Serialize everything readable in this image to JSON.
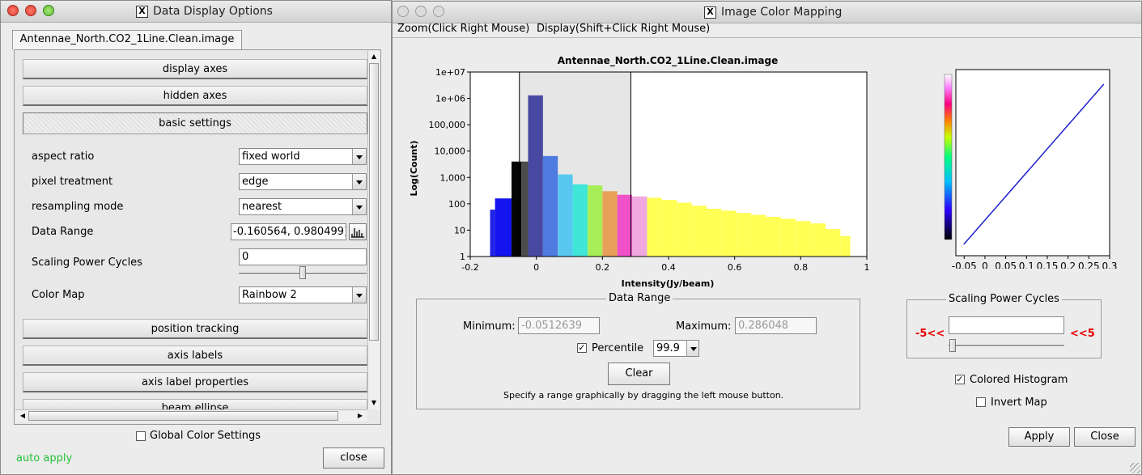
{
  "left_window": {
    "title": "Data Display Options",
    "tab": "Antennae_North.CO2_1Line.Clean.image",
    "sections": {
      "display_axes": "display axes",
      "hidden_axes": "hidden axes",
      "basic_settings": "basic settings",
      "position_tracking": "position tracking",
      "axis_labels": "axis labels",
      "axis_label_properties": "axis label properties",
      "beam_ellipse": "beam ellipse"
    },
    "settings": {
      "aspect_ratio_label": "aspect ratio",
      "aspect_ratio_value": "fixed world",
      "pixel_treatment_label": "pixel treatment",
      "pixel_treatment_value": "edge",
      "resampling_mode_label": "resampling mode",
      "resampling_mode_value": "nearest",
      "data_range_label": "Data Range",
      "data_range_value": "-0.160564, 0.980499]",
      "scaling_power_cycles_label": "Scaling Power Cycles",
      "scaling_power_cycles_value": "0",
      "color_map_label": "Color Map",
      "color_map_value": "Rainbow 2"
    },
    "global_color_settings": "Global Color Settings",
    "auto_apply": "auto apply",
    "close": "close"
  },
  "right_window": {
    "title": "Image Color Mapping",
    "menu": {
      "zoom": "Zoom(Click Right Mouse)",
      "display": "Display(Shift+Click Right Mouse)"
    },
    "data_range": {
      "legend": "Data Range",
      "minimum_label": "Minimum:",
      "minimum_value": "-0.0512639",
      "maximum_label": "Maximum:",
      "maximum_value": "0.286048",
      "percentile_label": "Percentile",
      "percentile_value": "99.9",
      "clear": "Clear",
      "hint": "Specify a range graphically by dragging the left mouse button."
    },
    "scaling": {
      "legend": "Scaling Power Cycles",
      "left_label": "-5<<",
      "right_label": "<<5",
      "value": ""
    },
    "colored_histogram": "Colored Histogram",
    "invert_map": "Invert Map",
    "apply": "Apply",
    "close": "Close",
    "colors": {
      "accent_red": "#e80000",
      "auto_apply_green": "#22c33a"
    }
  },
  "chart_data": [
    {
      "type": "bar",
      "title": "Antennae_North.CO2_1Line.Clean.image",
      "xlabel": "Intensity(Jy/beam)",
      "ylabel": "Log(Count)",
      "yscale": "log",
      "xlim": [
        -0.2,
        1
      ],
      "ylim": [
        1,
        10000000
      ],
      "xticks": [
        "-0.2",
        "0",
        "0.2",
        "0.4",
        "0.6",
        "0.8",
        "1"
      ],
      "yticks": [
        "1",
        "10",
        "100",
        "1,000",
        "10,000",
        "100,000",
        "1e+06",
        "1e+07"
      ],
      "selection": [
        -0.0512639,
        0.286048
      ],
      "bins": [
        {
          "x0": -0.14,
          "x1": -0.125,
          "count": 60,
          "color": "#2222e8"
        },
        {
          "x0": -0.125,
          "x1": -0.075,
          "count": 160,
          "color": "#1414f0"
        },
        {
          "x0": -0.075,
          "x1": -0.045,
          "count": 4000,
          "color": "#050505"
        },
        {
          "x0": -0.045,
          "x1": -0.025,
          "count": 4000,
          "color": "#4c4c4c"
        },
        {
          "x0": -0.025,
          "x1": 0.02,
          "count": 1300000,
          "color": "#4848a0"
        },
        {
          "x0": 0.02,
          "x1": 0.065,
          "count": 6500,
          "color": "#4f7ae0"
        },
        {
          "x0": 0.065,
          "x1": 0.11,
          "count": 1300,
          "color": "#58c8f0"
        },
        {
          "x0": 0.11,
          "x1": 0.155,
          "count": 550,
          "color": "#40e6d8"
        },
        {
          "x0": 0.155,
          "x1": 0.2,
          "count": 500,
          "color": "#a8ee58"
        },
        {
          "x0": 0.2,
          "x1": 0.245,
          "count": 300,
          "color": "#e8a058"
        },
        {
          "x0": 0.245,
          "x1": 0.29,
          "count": 220,
          "color": "#f050c8"
        },
        {
          "x0": 0.29,
          "x1": 0.335,
          "count": 190,
          "color": "#f0a8e0"
        },
        {
          "x0": 0.335,
          "x1": 0.38,
          "count": 170,
          "color": "#ffff55"
        },
        {
          "x0": 0.38,
          "x1": 0.425,
          "count": 140,
          "color": "#ffff55"
        },
        {
          "x0": 0.425,
          "x1": 0.47,
          "count": 110,
          "color": "#ffff55"
        },
        {
          "x0": 0.47,
          "x1": 0.515,
          "count": 85,
          "color": "#ffff55"
        },
        {
          "x0": 0.515,
          "x1": 0.56,
          "count": 65,
          "color": "#ffff55"
        },
        {
          "x0": 0.56,
          "x1": 0.605,
          "count": 55,
          "color": "#ffff55"
        },
        {
          "x0": 0.605,
          "x1": 0.65,
          "count": 45,
          "color": "#ffff55"
        },
        {
          "x0": 0.65,
          "x1": 0.695,
          "count": 38,
          "color": "#ffff55"
        },
        {
          "x0": 0.695,
          "x1": 0.74,
          "count": 32,
          "color": "#ffff55"
        },
        {
          "x0": 0.74,
          "x1": 0.785,
          "count": 27,
          "color": "#ffff55"
        },
        {
          "x0": 0.785,
          "x1": 0.83,
          "count": 22,
          "color": "#ffff55"
        },
        {
          "x0": 0.83,
          "x1": 0.875,
          "count": 18,
          "color": "#ffff55"
        },
        {
          "x0": 0.875,
          "x1": 0.92,
          "count": 11,
          "color": "#ffff55"
        },
        {
          "x0": 0.92,
          "x1": 0.95,
          "count": 6,
          "color": "#ffff55"
        }
      ]
    },
    {
      "type": "line",
      "xticks": [
        "-0.05",
        "0",
        "0.05",
        "0.1",
        "0.15",
        "0.2",
        "0.25",
        "0.3"
      ],
      "xlim": [
        -0.07,
        0.3
      ],
      "ylim": [
        0,
        1
      ],
      "x": [
        -0.051,
        0.286
      ],
      "y": [
        0,
        1
      ],
      "color": "#2020cc"
    }
  ]
}
